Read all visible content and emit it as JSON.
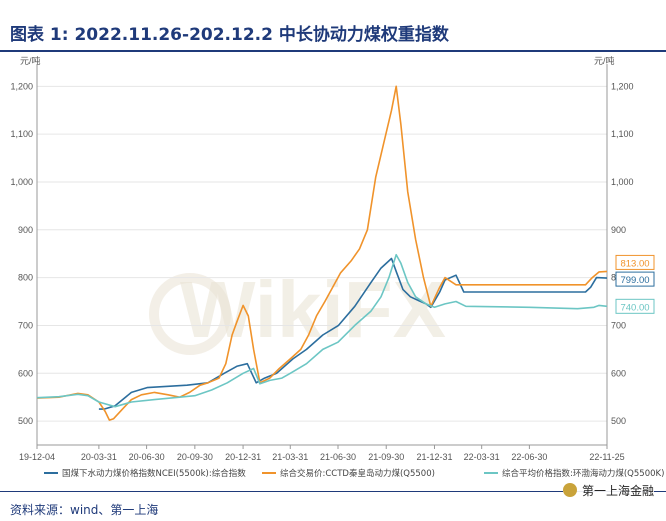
{
  "header": {
    "title": "图表 1: 2022.11.26-202.12.2 中长协动力煤权重指数"
  },
  "footer": {
    "source": "资料来源：wind、第一上海",
    "brand": "第一上海金融"
  },
  "watermark": "WikiFX",
  "chart_data": {
    "type": "line",
    "y_unit_left": "元/吨",
    "y_unit_right": "元/吨",
    "ylim": [
      450,
      1230
    ],
    "yticks": [
      500,
      600,
      700,
      800,
      900,
      1000,
      1100,
      1200
    ],
    "ytick_labels": [
      "500",
      "600",
      "700",
      "800",
      "900",
      "1,000",
      "1,100",
      "1,200"
    ],
    "xlim": [
      "2019-12-04",
      "2022-11-25"
    ],
    "xticks": [
      {
        "date": "2019-12-04",
        "label": "19-12-04"
      },
      {
        "date": "2020-03-31",
        "label": "20-03-31"
      },
      {
        "date": "2020-06-30",
        "label": "20-06-30"
      },
      {
        "date": "2020-09-30",
        "label": "20-09-30"
      },
      {
        "date": "2020-12-31",
        "label": "20-12-31"
      },
      {
        "date": "2021-03-31",
        "label": "21-03-31"
      },
      {
        "date": "2021-06-30",
        "label": "21-06-30"
      },
      {
        "date": "2021-09-30",
        "label": "21-09-30"
      },
      {
        "date": "2021-12-31",
        "label": "21-12-31"
      },
      {
        "date": "2022-03-31",
        "label": "22-03-31"
      },
      {
        "date": "2022-06-30",
        "label": "22-06-30"
      },
      {
        "date": "2022-11-25",
        "label": "22-11-25"
      }
    ],
    "grid": true,
    "legend_position": "bottom",
    "series": [
      {
        "name": "国煤下水动力煤价格指数NCEI(5500k):综合指数",
        "color": "#2c6e9e",
        "end_label": "799.00",
        "points": [
          [
            "2020-03-31",
            525
          ],
          [
            "2020-04-10",
            525
          ],
          [
            "2020-05-01",
            532
          ],
          [
            "2020-06-01",
            560
          ],
          [
            "2020-07-01",
            570
          ],
          [
            "2020-09-15",
            575
          ],
          [
            "2020-10-25",
            580
          ],
          [
            "2020-11-25",
            600
          ],
          [
            "2020-12-20",
            615
          ],
          [
            "2021-01-08",
            620
          ],
          [
            "2021-01-25",
            580
          ],
          [
            "2021-02-10",
            590
          ],
          [
            "2021-03-05",
            600
          ],
          [
            "2021-04-05",
            630
          ],
          [
            "2021-05-01",
            650
          ],
          [
            "2021-06-01",
            680
          ],
          [
            "2021-07-01",
            700
          ],
          [
            "2021-08-01",
            740
          ],
          [
            "2021-09-01",
            790
          ],
          [
            "2021-09-20",
            820
          ],
          [
            "2021-10-10",
            840
          ],
          [
            "2021-10-20",
            810
          ],
          [
            "2021-11-01",
            775
          ],
          [
            "2021-11-15",
            760
          ],
          [
            "2021-12-01",
            752
          ],
          [
            "2021-12-15",
            745
          ],
          [
            "2021-12-24",
            738
          ],
          [
            "2022-01-10",
            770
          ],
          [
            "2022-01-20",
            795
          ],
          [
            "2022-02-10",
            805
          ],
          [
            "2022-02-25",
            770
          ],
          [
            "2022-03-31",
            770
          ],
          [
            "2022-06-30",
            770
          ],
          [
            "2022-08-31",
            770
          ],
          [
            "2022-10-15",
            770
          ],
          [
            "2022-10-25",
            780
          ],
          [
            "2022-11-05",
            800
          ],
          [
            "2022-11-25",
            799
          ]
        ]
      },
      {
        "name": "综合交易价:CCTD秦皇岛动力煤(Q5500)",
        "color": "#f0932b",
        "end_label": "813.00",
        "points": [
          [
            "2019-12-04",
            548
          ],
          [
            "2020-01-15",
            550
          ],
          [
            "2020-02-20",
            558
          ],
          [
            "2020-03-10",
            555
          ],
          [
            "2020-03-31",
            540
          ],
          [
            "2020-04-12",
            520
          ],
          [
            "2020-04-20",
            502
          ],
          [
            "2020-04-28",
            505
          ],
          [
            "2020-05-15",
            525
          ],
          [
            "2020-06-01",
            545
          ],
          [
            "2020-06-20",
            555
          ],
          [
            "2020-07-15",
            560
          ],
          [
            "2020-08-10",
            555
          ],
          [
            "2020-09-01",
            550
          ],
          [
            "2020-09-20",
            560
          ],
          [
            "2020-10-10",
            575
          ],
          [
            "2020-10-25",
            580
          ],
          [
            "2020-11-15",
            590
          ],
          [
            "2020-11-28",
            620
          ],
          [
            "2020-12-10",
            680
          ],
          [
            "2020-12-20",
            710
          ],
          [
            "2020-12-31",
            742
          ],
          [
            "2021-01-10",
            720
          ],
          [
            "2021-01-20",
            650
          ],
          [
            "2021-02-01",
            580
          ],
          [
            "2021-02-20",
            590
          ],
          [
            "2021-03-10",
            610
          ],
          [
            "2021-03-31",
            630
          ],
          [
            "2021-04-20",
            650
          ],
          [
            "2021-05-05",
            680
          ],
          [
            "2021-05-20",
            720
          ],
          [
            "2021-06-05",
            750
          ],
          [
            "2021-06-20",
            780
          ],
          [
            "2021-07-05",
            810
          ],
          [
            "2021-07-25",
            835
          ],
          [
            "2021-08-10",
            860
          ],
          [
            "2021-08-25",
            900
          ],
          [
            "2021-09-10",
            1010
          ],
          [
            "2021-09-25",
            1080
          ],
          [
            "2021-10-10",
            1150
          ],
          [
            "2021-10-19",
            1200
          ],
          [
            "2021-10-28",
            1120
          ],
          [
            "2021-11-10",
            980
          ],
          [
            "2021-11-25",
            880
          ],
          [
            "2021-12-10",
            800
          ],
          [
            "2021-12-24",
            740
          ],
          [
            "2022-01-10",
            780
          ],
          [
            "2022-01-20",
            800
          ],
          [
            "2022-02-10",
            785
          ],
          [
            "2022-03-31",
            785
          ],
          [
            "2022-06-30",
            785
          ],
          [
            "2022-10-15",
            785
          ],
          [
            "2022-10-28",
            800
          ],
          [
            "2022-11-10",
            812
          ],
          [
            "2022-11-25",
            813
          ]
        ]
      },
      {
        "name": "综合平均价格指数:环渤海动力煤(Q5500K)",
        "color": "#6cc6c4",
        "end_label": "740.00",
        "points": [
          [
            "2019-12-04",
            549
          ],
          [
            "2020-01-15",
            551
          ],
          [
            "2020-02-20",
            556
          ],
          [
            "2020-03-10",
            553
          ],
          [
            "2020-03-31",
            540
          ],
          [
            "2020-05-01",
            530
          ],
          [
            "2020-06-01",
            540
          ],
          [
            "2020-07-15",
            545
          ],
          [
            "2020-09-01",
            550
          ],
          [
            "2020-09-30",
            553
          ],
          [
            "2020-11-01",
            565
          ],
          [
            "2020-12-01",
            580
          ],
          [
            "2020-12-31",
            600
          ],
          [
            "2021-01-20",
            610
          ],
          [
            "2021-02-01",
            578
          ],
          [
            "2021-02-20",
            585
          ],
          [
            "2021-03-15",
            590
          ],
          [
            "2021-03-31",
            600
          ],
          [
            "2021-05-01",
            620
          ],
          [
            "2021-06-01",
            650
          ],
          [
            "2021-06-30",
            665
          ],
          [
            "2021-08-01",
            700
          ],
          [
            "2021-09-01",
            730
          ],
          [
            "2021-09-20",
            760
          ],
          [
            "2021-10-05",
            800
          ],
          [
            "2021-10-19",
            848
          ],
          [
            "2021-10-28",
            830
          ],
          [
            "2021-11-10",
            790
          ],
          [
            "2021-11-25",
            760
          ],
          [
            "2021-12-15",
            745
          ],
          [
            "2021-12-31",
            738
          ],
          [
            "2022-01-20",
            745
          ],
          [
            "2022-02-10",
            750
          ],
          [
            "2022-03-01",
            740
          ],
          [
            "2022-06-30",
            738
          ],
          [
            "2022-09-30",
            735
          ],
          [
            "2022-10-31",
            738
          ],
          [
            "2022-11-10",
            742
          ],
          [
            "2022-11-25",
            740
          ]
        ]
      }
    ]
  }
}
